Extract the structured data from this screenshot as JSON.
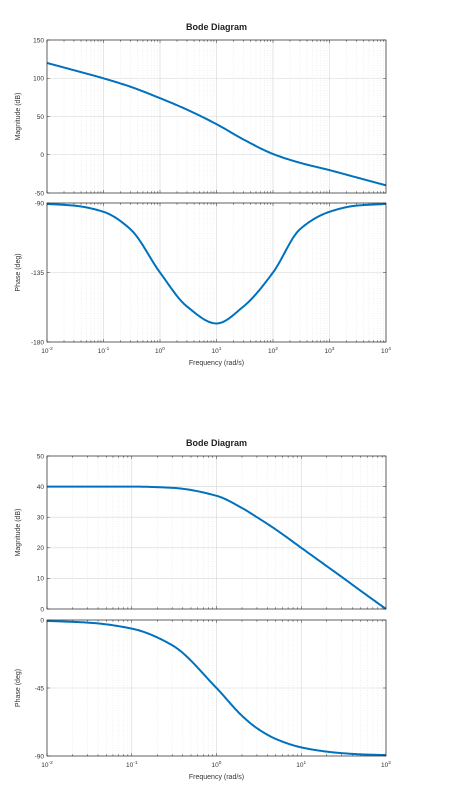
{
  "chart_data": [
    {
      "type": "line",
      "title": "Bode Diagram",
      "xlabel": "Frequency (rad/s)",
      "xscale": "log",
      "xlim": [
        0.01,
        10000
      ],
      "xticks": [
        {
          "label": "10",
          "exp": "-2"
        },
        {
          "label": "10",
          "exp": "-1"
        },
        {
          "label": "10",
          "exp": "0"
        },
        {
          "label": "10",
          "exp": "1"
        },
        {
          "label": "10",
          "exp": "2"
        },
        {
          "label": "10",
          "exp": "3"
        },
        {
          "label": "10",
          "exp": "4"
        }
      ],
      "grid": true,
      "line_color": "#0072BD",
      "magnitude": {
        "ylabel": "Magnitude (dB)",
        "ylim": [
          -50,
          150
        ],
        "yticks": [
          "150",
          "100",
          "50",
          "0",
          "-50"
        ],
        "x": [
          0.01,
          0.03,
          0.1,
          0.3,
          1,
          3,
          10,
          30,
          100,
          300,
          1000,
          3000,
          10000
        ],
        "y": [
          120,
          110.5,
          99.9,
          88.9,
          74,
          59,
          40,
          20,
          1,
          -10.5,
          -20.1,
          -29.6,
          -40
        ]
      },
      "phase": {
        "ylabel": "Phase (deg)",
        "ylim": [
          -180,
          -90
        ],
        "yticks": [
          "-90",
          "-135",
          "-180"
        ],
        "x": [
          0.01,
          0.03,
          0.1,
          0.3,
          1,
          3,
          10,
          30,
          100,
          300,
          1000,
          3000,
          10000
        ],
        "y": [
          -90.6,
          -91.7,
          -95.7,
          -107,
          -135,
          -157,
          -168,
          -157,
          -135,
          -107,
          -95.7,
          -91.7,
          -90.6
        ]
      }
    },
    {
      "type": "line",
      "title": "Bode Diagram",
      "xlabel": "Frequency (rad/s)",
      "xscale": "log",
      "xlim": [
        0.01,
        100
      ],
      "xticks": [
        {
          "label": "10",
          "exp": "-2"
        },
        {
          "label": "10",
          "exp": "-1"
        },
        {
          "label": "10",
          "exp": "0"
        },
        {
          "label": "10",
          "exp": "1"
        },
        {
          "label": "10",
          "exp": "2"
        }
      ],
      "grid": true,
      "line_color": "#0072BD",
      "magnitude": {
        "ylabel": "Magnitude (dB)",
        "ylim": [
          0,
          50
        ],
        "yticks": [
          "50",
          "40",
          "30",
          "20",
          "10",
          "0"
        ],
        "x": [
          0.01,
          0.03,
          0.1,
          0.3,
          1,
          2,
          3,
          5,
          10,
          20,
          30,
          50,
          100
        ],
        "y": [
          40,
          40,
          40,
          39.6,
          37,
          33,
          30,
          26,
          20,
          14,
          10.5,
          6,
          0
        ]
      },
      "phase": {
        "ylabel": "Phase (deg)",
        "ylim": [
          -90,
          0
        ],
        "yticks": [
          "0",
          "-45",
          "-90"
        ],
        "x": [
          0.01,
          0.03,
          0.1,
          0.3,
          1,
          2,
          3,
          5,
          10,
          20,
          30,
          50,
          100
        ],
        "y": [
          -0.6,
          -1.7,
          -5.7,
          -16.7,
          -45,
          -63.4,
          -71.6,
          -78.7,
          -84.3,
          -87.1,
          -88.1,
          -88.9,
          -89.4
        ]
      }
    }
  ]
}
